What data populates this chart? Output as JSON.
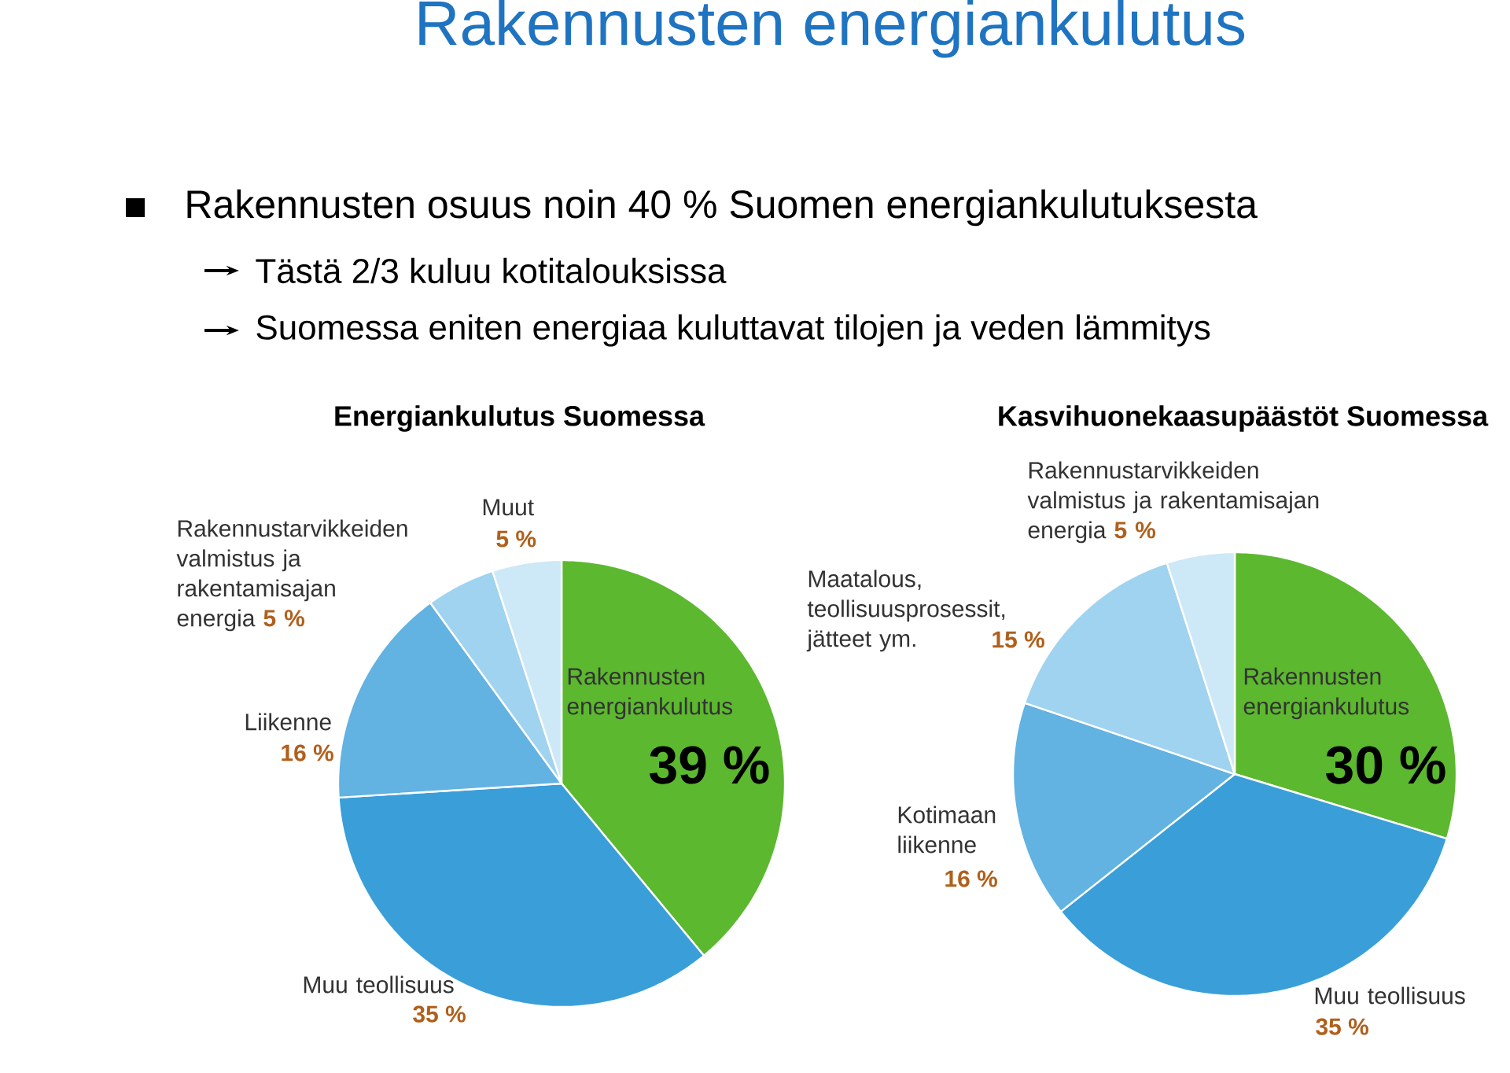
{
  "chart_data": [
    {
      "type": "other",
      "title": "Rakennusten energiankulutus",
      "annotations": [
        "Rakennusten osuus noin 40 % Suomen energiankulutuksesta",
        "Tästä 2/3 kuluu kotitalouksissa",
        "Suomessa eniten energiaa kuluttavat tilojen ja veden lämmitys"
      ]
    },
    {
      "type": "pie",
      "title": "Energiankulutus Suomessa",
      "categories": [
        "Rakennusten energiankulutus",
        "Muu teollisuus",
        "Liikenne",
        "Rakennustarvikkeiden valmistus ja rakentamisajan energia",
        "Muut"
      ],
      "values": [
        39,
        35,
        16,
        5,
        5
      ],
      "value_labels": [
        "39 %",
        "35 %",
        "16 %",
        "5 %",
        "5 %"
      ],
      "colors": [
        "#5cb82e",
        "#3a9fd8",
        "#62b2e2",
        "#9fd3ef",
        "#cde8f6"
      ]
    },
    {
      "type": "pie",
      "title": "Kasvihuonekaasupäästöt Suomessa",
      "categories": [
        "Rakennusten energiankulutus",
        "Muu teollisuus",
        "Kotimaan liikenne",
        "Maatalous, teollisuusprosessit, jätteet ym.",
        "Rakennustarvikkeiden valmistus ja rakentamisajan energia"
      ],
      "values": [
        30,
        35,
        16,
        15,
        5
      ],
      "value_labels": [
        "30 %",
        "35 %",
        "16 %",
        "15 %",
        "5 %"
      ],
      "colors": [
        "#5cb82e",
        "#3a9fd8",
        "#62b2e2",
        "#9fd3ef",
        "#cde8f6"
      ]
    }
  ]
}
